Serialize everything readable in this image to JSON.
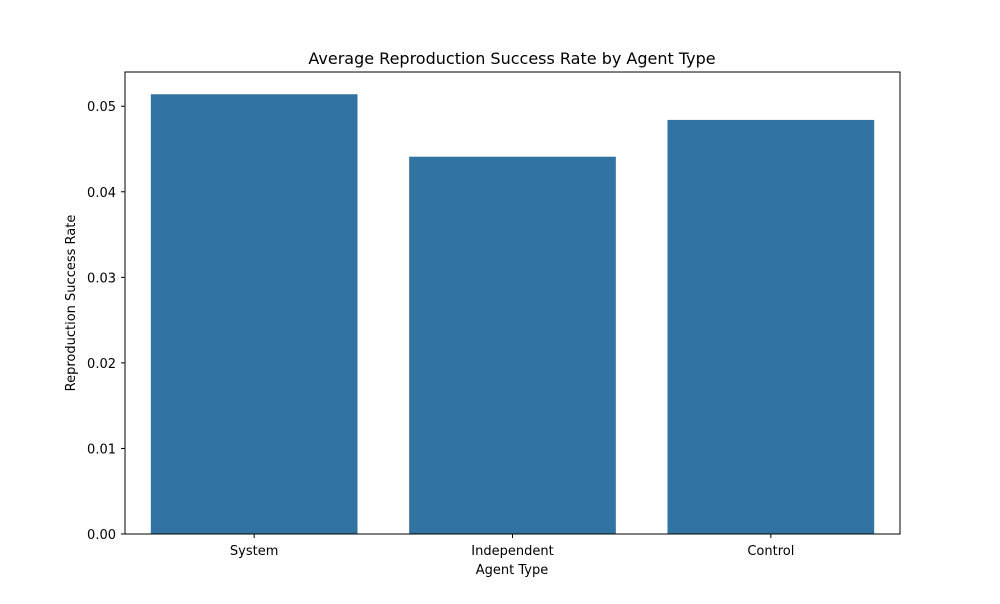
{
  "chart_data": {
    "type": "bar",
    "title": "Average Reproduction Success Rate by Agent Type",
    "xlabel": "Agent Type",
    "ylabel": "Reproduction Success Rate",
    "categories": [
      "System",
      "Independent",
      "Control"
    ],
    "values": [
      0.0514,
      0.0441,
      0.0484
    ],
    "ylim": [
      0,
      0.054
    ],
    "yticks": [
      0.0,
      0.01,
      0.02,
      0.03,
      0.04,
      0.05
    ],
    "ytick_labels": [
      "0.00",
      "0.01",
      "0.02",
      "0.03",
      "0.04",
      "0.05"
    ],
    "grid": false,
    "legend": "none",
    "bar_color": "#3274a1"
  }
}
